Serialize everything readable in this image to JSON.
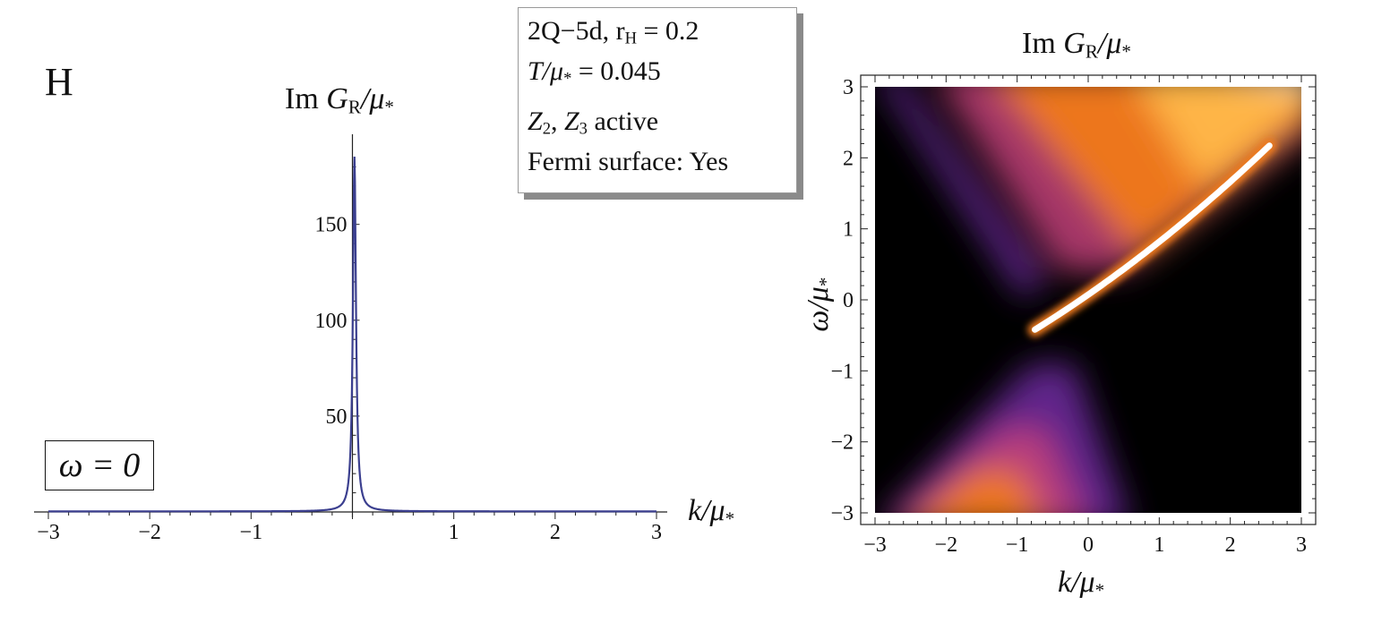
{
  "panel_label": "H",
  "info": {
    "line1": "2Q−5d,  r",
    "line1_sub": "H",
    "line1_val": " = 0.2",
    "line2_italic": "T/μ",
    "line2_sub": "*",
    "line2_val": " = 0.045",
    "line3_a": "Z",
    "line3_a_sub": "2",
    "line3_sep": ", ",
    "line3_b": "Z",
    "line3_b_sub": "3",
    "line3_rest": " active",
    "line4": "Fermi surface: Yes"
  },
  "omega_label": "ω = 0",
  "chart_data": [
    {
      "type": "line",
      "title": "Im G_R/μ_*",
      "title_main": "Im ",
      "title_it": "G",
      "title_sub": "R",
      "title_tail": "/μ",
      "title_tail_sub": "*",
      "xlabel": "k/μ_*",
      "xlabel_it": "k/μ",
      "xlabel_sub": "*",
      "xlim": [
        -3,
        3
      ],
      "ylim": [
        0,
        190
      ],
      "x_ticks": [
        -3,
        -2,
        -1,
        1,
        2,
        3
      ],
      "x_tick_labels": [
        "−3",
        "−2",
        "−1",
        "1",
        "2",
        "3"
      ],
      "y_ticks": [
        50,
        100,
        150
      ],
      "y_tick_labels": [
        "50",
        "100",
        "150"
      ],
      "series": [
        {
          "color": "#3b3f8f",
          "peak_k": 0.02,
          "peak_value": 185,
          "x": [
            -3,
            -2,
            -1,
            -0.5,
            -0.2,
            -0.1,
            -0.05,
            -0.02,
            0,
            0.01,
            0.02,
            0.03,
            0.04,
            0.06,
            0.1,
            0.2,
            0.5,
            1,
            2,
            3
          ],
          "y": [
            0.3,
            0.4,
            0.6,
            1,
            2,
            5,
            12,
            60,
            150,
            180,
            185,
            175,
            140,
            60,
            18,
            5,
            1.5,
            0.6,
            0.3,
            0.2
          ]
        }
      ],
      "grid": false
    },
    {
      "type": "heatmap",
      "title": "Im G_R/μ_*",
      "title_main": "Im ",
      "title_it": "G",
      "title_sub": "R",
      "title_tail": "/μ",
      "title_tail_sub": "*",
      "xlabel": "k/μ_*",
      "xlabel_it": "k/μ",
      "xlabel_sub": "*",
      "ylabel": "ω/μ_*",
      "ylabel_it": "ω/μ",
      "ylabel_sub": "*",
      "xlim": [
        -3,
        3
      ],
      "ylim": [
        -3,
        3
      ],
      "x_ticks": [
        -3,
        -2,
        -1,
        0,
        1,
        2,
        3
      ],
      "x_tick_labels": [
        "−3",
        "−2",
        "−1",
        "0",
        "1",
        "2",
        "3"
      ],
      "y_ticks": [
        -3,
        -2,
        -1,
        0,
        1,
        2,
        3
      ],
      "y_tick_labels": [
        "−3",
        "−2",
        "−1",
        "0",
        "1",
        "2",
        "3"
      ],
      "colormap": [
        "#000000",
        "#2a0a4a",
        "#6a2a9a",
        "#c2417a",
        "#f07a1a",
        "#ffb84a",
        "#fff6d8",
        "#ffffff"
      ],
      "grid": false
    }
  ]
}
